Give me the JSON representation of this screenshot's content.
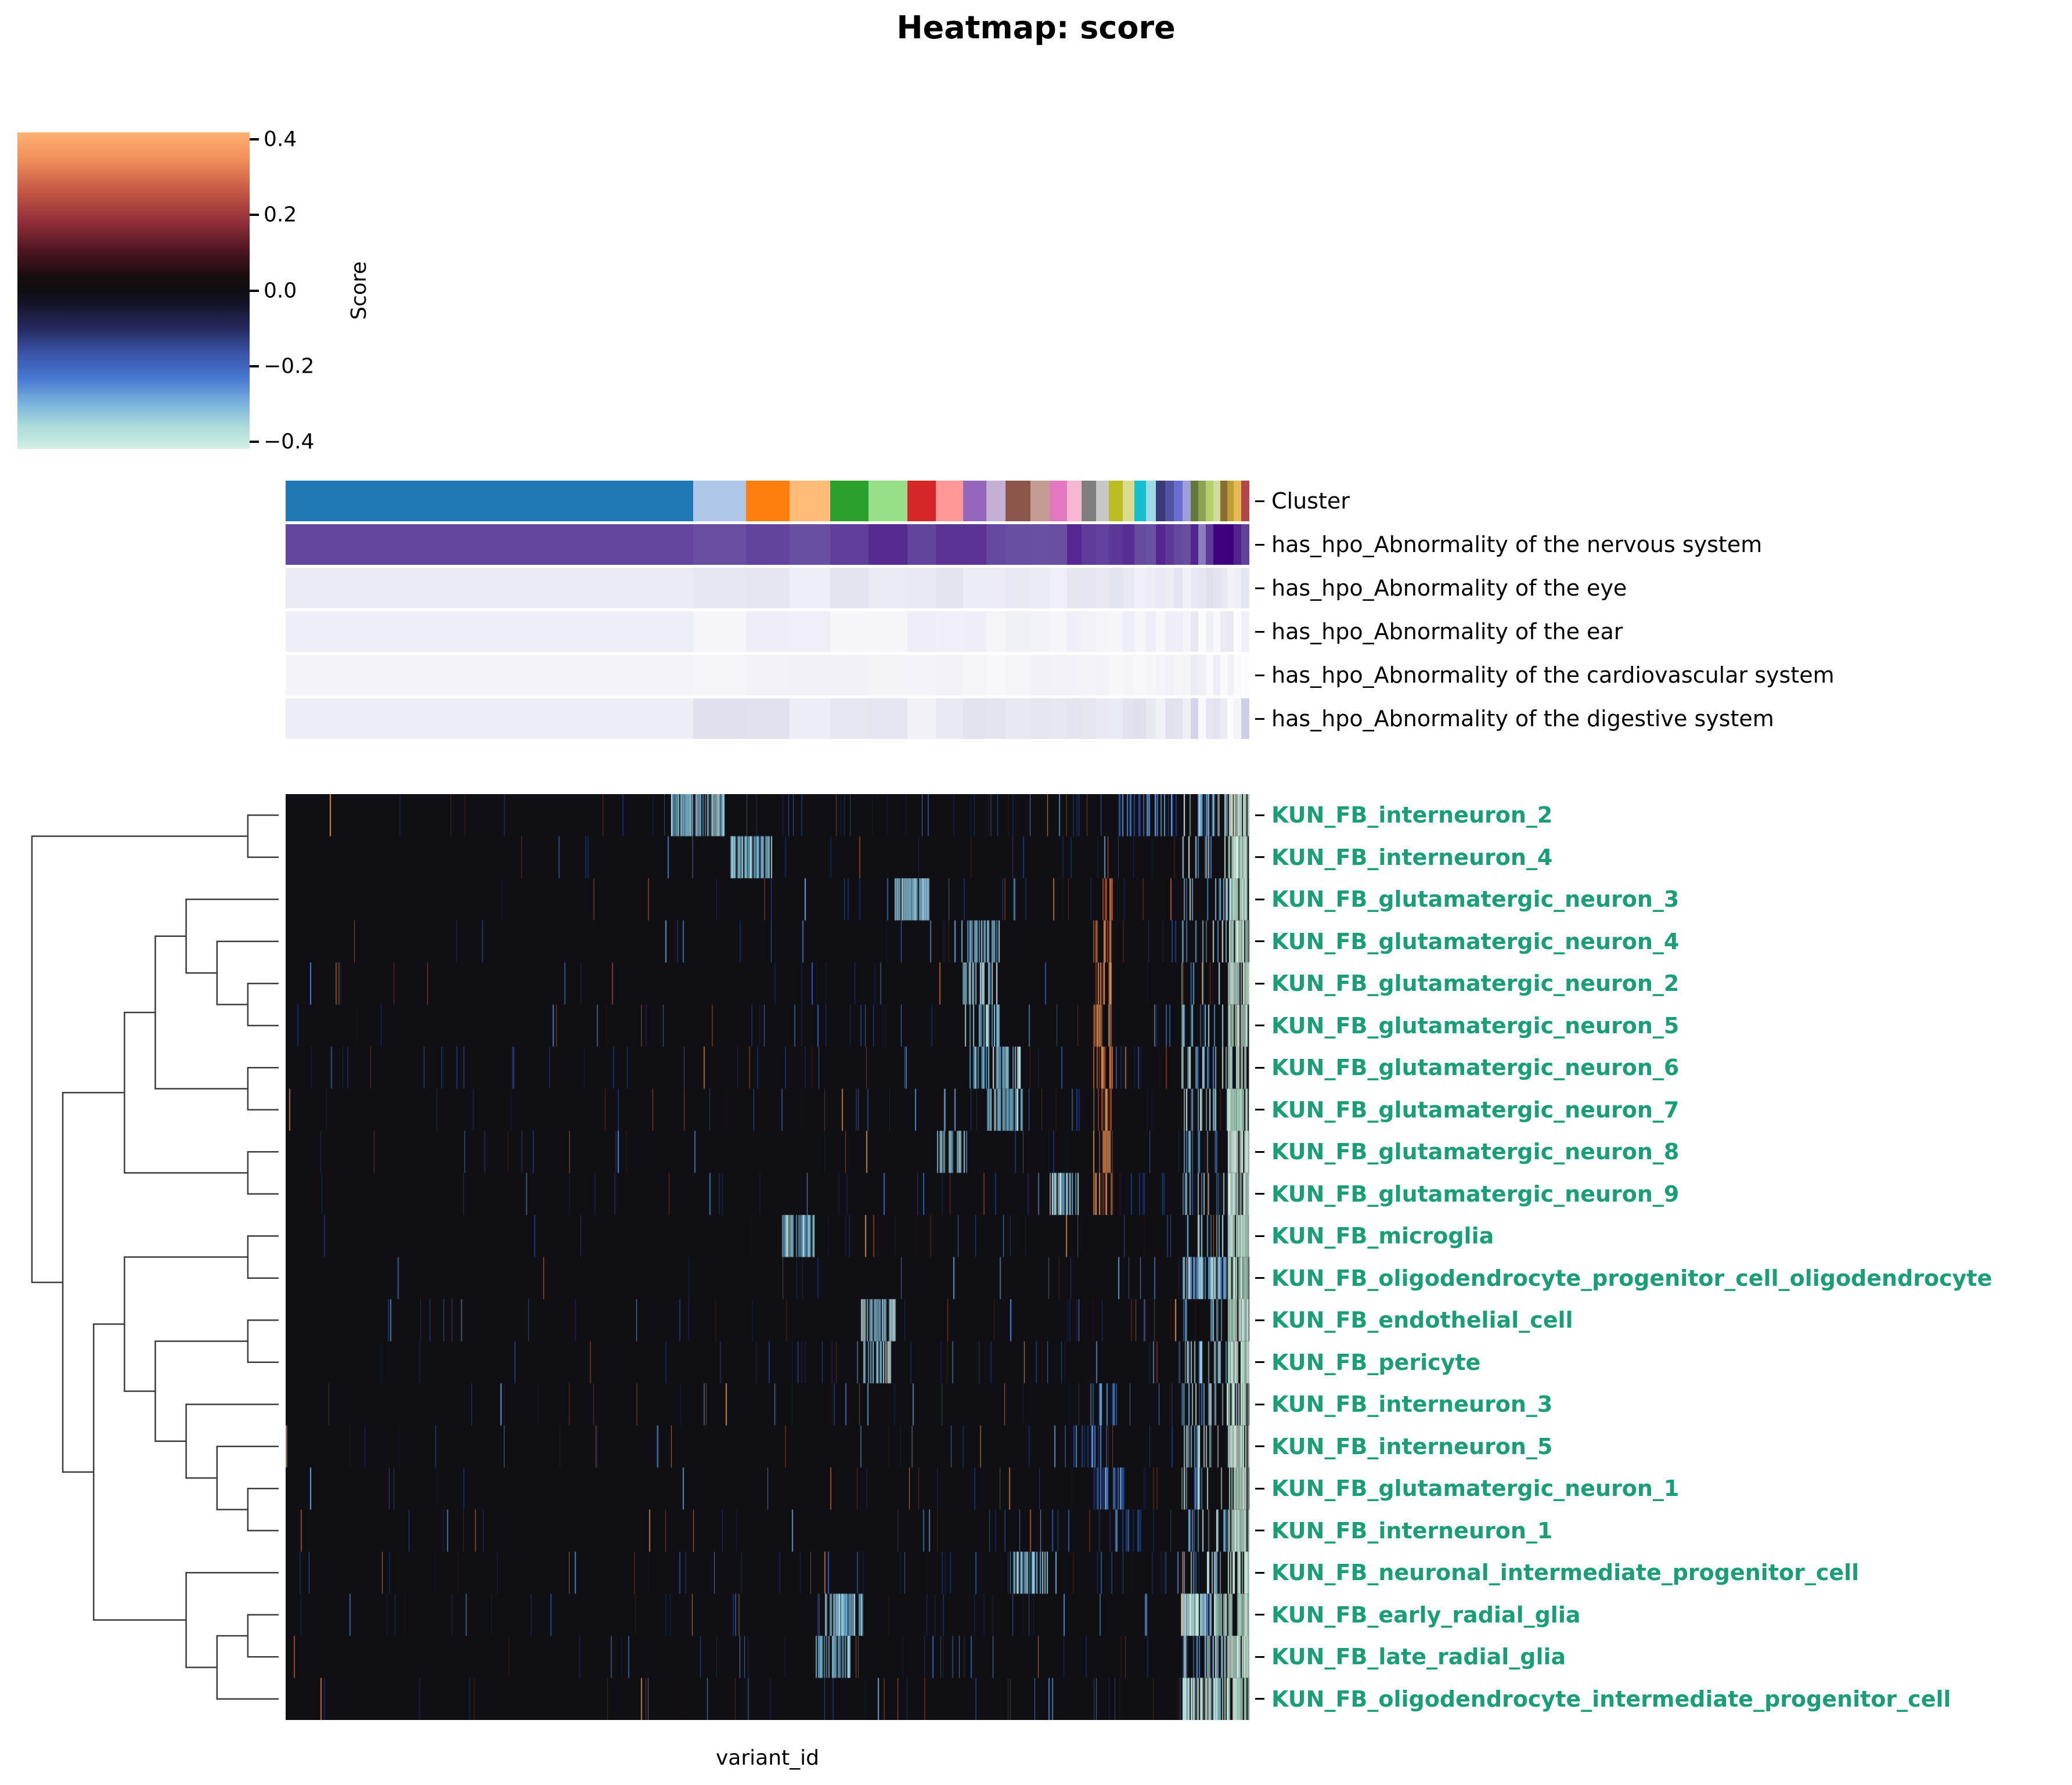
{
  "chart_data": {
    "type": "heatmap",
    "title": "Heatmap: score",
    "xlabel": "variant_id",
    "row_label_color": "#1b9e77",
    "background": "#101014",
    "colorbar": {
      "label": "Score",
      "ticks": [
        "0.4",
        "0.2",
        "0.0",
        "−0.2",
        "−0.4"
      ],
      "stops": [
        {
          "pos": "0%",
          "color": "#ffb073"
        },
        {
          "pos": "8%",
          "color": "#f2915c"
        },
        {
          "pos": "18%",
          "color": "#c85a46"
        },
        {
          "pos": "28%",
          "color": "#93303a"
        },
        {
          "pos": "38%",
          "color": "#4a1420"
        },
        {
          "pos": "46%",
          "color": "#170d0e"
        },
        {
          "pos": "50%",
          "color": "#0e0e12"
        },
        {
          "pos": "54%",
          "color": "#131327"
        },
        {
          "pos": "62%",
          "color": "#262a5e"
        },
        {
          "pos": "70%",
          "color": "#3a55a8"
        },
        {
          "pos": "78%",
          "color": "#4879d2"
        },
        {
          "pos": "86%",
          "color": "#7db4dc"
        },
        {
          "pos": "93%",
          "color": "#abdbd9"
        },
        {
          "pos": "100%",
          "color": "#d2efe3"
        }
      ]
    },
    "purple_scale": [
      [
        0,
        "#fcfbfd"
      ],
      [
        0.25,
        "#dadaeb"
      ],
      [
        0.5,
        "#9e9ac8"
      ],
      [
        0.75,
        "#6a51a3"
      ],
      [
        1,
        "#3f007d"
      ]
    ],
    "column_annotations": [
      {
        "label": "Cluster",
        "kind": "categorical",
        "segments": [
          [
            "#1f77b4",
            0.423
          ],
          [
            "#aec7e8",
            0.055
          ],
          [
            "#ff7f0e",
            0.045
          ],
          [
            "#ffbb78",
            0.042
          ],
          [
            "#2ca02c",
            0.04
          ],
          [
            "#98df8a",
            0.04
          ],
          [
            "#d62728",
            0.03
          ],
          [
            "#ff9896",
            0.028
          ],
          [
            "#9467bd",
            0.024
          ],
          [
            "#c5b0d5",
            0.02
          ],
          [
            "#8c564b",
            0.026
          ],
          [
            "#c49c94",
            0.02
          ],
          [
            "#e377c2",
            0.018
          ],
          [
            "#f7b6d2",
            0.015
          ],
          [
            "#7f7f7f",
            0.015
          ],
          [
            "#c7c7c7",
            0.013
          ],
          [
            "#bcbd22",
            0.015
          ],
          [
            "#dbdb8d",
            0.012
          ],
          [
            "#17becf",
            0.012
          ],
          [
            "#9edae5",
            0.01
          ],
          [
            "#393b79",
            0.01
          ],
          [
            "#5254a3",
            0.009
          ],
          [
            "#6b6ecf",
            0.009
          ],
          [
            "#9c9ede",
            0.008
          ],
          [
            "#637939",
            0.008
          ],
          [
            "#8ca252",
            0.008
          ],
          [
            "#b5cf6b",
            0.008
          ],
          [
            "#cedb9c",
            0.007
          ],
          [
            "#8c6d31",
            0.007
          ],
          [
            "#bd9e39",
            0.007
          ],
          [
            "#e7ba52",
            0.008
          ],
          [
            "#ad494a",
            0.008
          ]
        ]
      },
      {
        "label": "has_hpo_Abnormality of the nervous system",
        "kind": "continuous",
        "level": 0.82,
        "jitter": 0.07,
        "tail_jitter": 0.25
      },
      {
        "label": "has_hpo_Abnormality of the eye",
        "kind": "continuous",
        "level": 0.13,
        "jitter": 0.05,
        "tail_jitter": 0.12
      },
      {
        "label": "has_hpo_Abnormality of the ear",
        "kind": "continuous",
        "level": 0.07,
        "jitter": 0.035,
        "tail_jitter": 0.08
      },
      {
        "label": "has_hpo_Abnormality of the cardiovascular system",
        "kind": "continuous",
        "level": 0.05,
        "jitter": 0.03,
        "tail_jitter": 0.08
      },
      {
        "label": "has_hpo_Abnormality of the digestive system",
        "kind": "continuous",
        "level": 0.14,
        "jitter": 0.07,
        "tail_jitter": 0.2
      }
    ],
    "palettes": {
      "blues": [
        "#1b3a8c",
        "#2f5fc4",
        "#4d86d8",
        "#103070",
        "#6fa8dc"
      ],
      "oranges": [
        "#a8441f",
        "#c96a38",
        "#7e2f12",
        "#d98d55"
      ],
      "darks": [
        "#23184a",
        "#321b10",
        "#1d2a52"
      ],
      "cyan": [
        "#8ecae6",
        "#a8dadc",
        "#6db8dd",
        "#cfeef2",
        "#5aa7d1"
      ],
      "blue": [
        "#4d86d8",
        "#2f5fc4",
        "#6fa8dc",
        "#1b3a8c"
      ],
      "paleGreen": [
        "#cde9da",
        "#b9e2cf",
        "#e0f2e6",
        "#a7dcc6"
      ],
      "rightMix": [
        "#9fd3e8",
        "#cde9da",
        "#4d86d8",
        "#bfe8ea",
        "#6db8dd"
      ],
      "strip": [
        "#cfeadd",
        "#b9e2cf",
        "#dff3e8",
        "#a7dcc6"
      ],
      "orangeBand": [
        "#c96a38",
        "#e08a4e",
        "#a8441f",
        "#f0a868"
      ]
    },
    "rows": [
      {
        "label": "KUN_FB_interneuron_2",
        "density": 1.0,
        "right": 0.65,
        "orange_band": false,
        "blocks": [
          [
            0.4,
            0.455,
            "cyan",
            0.85
          ],
          [
            0.86,
            0.93,
            "blue",
            0.45
          ]
        ]
      },
      {
        "label": "KUN_FB_interneuron_4",
        "density": 0.9,
        "right": 0.5,
        "orange_band": false,
        "blocks": [
          [
            0.462,
            0.505,
            "cyan",
            0.85
          ]
        ]
      },
      {
        "label": "KUN_FB_glutamatergic_neuron_3",
        "density": 0.95,
        "right": 0.45,
        "orange_band": true,
        "blocks": [
          [
            0.632,
            0.668,
            "cyan",
            0.8
          ]
        ]
      },
      {
        "label": "KUN_FB_glutamatergic_neuron_4",
        "density": 0.9,
        "right": 0.45,
        "orange_band": true,
        "blocks": [
          [
            0.7,
            0.74,
            "cyan",
            0.55
          ]
        ]
      },
      {
        "label": "KUN_FB_glutamatergic_neuron_2",
        "density": 0.9,
        "right": 0.4,
        "orange_band": true,
        "blocks": [
          [
            0.7,
            0.738,
            "cyan",
            0.5
          ]
        ]
      },
      {
        "label": "KUN_FB_glutamatergic_neuron_5",
        "density": 0.9,
        "right": 0.4,
        "orange_band": true,
        "blocks": [
          [
            0.705,
            0.742,
            "cyan",
            0.55
          ]
        ]
      },
      {
        "label": "KUN_FB_glutamatergic_neuron_6",
        "density": 0.95,
        "right": 0.45,
        "orange_band": true,
        "blocks": [
          [
            0.7,
            0.762,
            "cyan",
            0.6
          ]
        ]
      },
      {
        "label": "KUN_FB_glutamatergic_neuron_7",
        "density": 0.95,
        "right": 0.5,
        "orange_band": true,
        "blocks": [
          [
            0.728,
            0.765,
            "cyan",
            0.7
          ]
        ]
      },
      {
        "label": "KUN_FB_glutamatergic_neuron_8",
        "density": 0.9,
        "right": 0.45,
        "orange_band": true,
        "blocks": [
          [
            0.676,
            0.705,
            "cyan",
            0.7
          ]
        ]
      },
      {
        "label": "KUN_FB_glutamatergic_neuron_9",
        "density": 0.9,
        "right": 0.5,
        "orange_band": true,
        "blocks": [
          [
            0.793,
            0.822,
            "cyan",
            0.75
          ]
        ]
      },
      {
        "label": "KUN_FB_microglia",
        "density": 0.85,
        "right": 0.4,
        "orange_band": false,
        "blocks": [
          [
            0.513,
            0.548,
            "cyan",
            0.85
          ]
        ]
      },
      {
        "label": "KUN_FB_oligodendrocyte_progenitor_cell_oligodendrocyte",
        "density": 0.85,
        "right": 0.8,
        "orange_band": false,
        "blocks": [
          [
            0.93,
            0.975,
            "cyan",
            0.6
          ]
        ]
      },
      {
        "label": "KUN_FB_endothelial_cell",
        "density": 0.8,
        "right": 0.45,
        "orange_band": false,
        "blocks": [
          [
            0.597,
            0.632,
            "cyan",
            0.8
          ]
        ]
      },
      {
        "label": "KUN_FB_pericyte",
        "density": 0.8,
        "right": 0.45,
        "orange_band": false,
        "blocks": [
          [
            0.597,
            0.628,
            "cyan",
            0.55
          ]
        ]
      },
      {
        "label": "KUN_FB_interneuron_3",
        "density": 0.85,
        "right": 0.5,
        "orange_band": false,
        "blocks": [
          [
            0.835,
            0.862,
            "blue",
            0.5
          ]
        ]
      },
      {
        "label": "KUN_FB_interneuron_5",
        "density": 0.85,
        "right": 0.5,
        "orange_band": false,
        "blocks": [
          [
            0.818,
            0.852,
            "blue",
            0.55
          ]
        ]
      },
      {
        "label": "KUN_FB_glutamatergic_neuron_1",
        "density": 0.85,
        "right": 0.5,
        "orange_band": false,
        "blocks": [
          [
            0.838,
            0.872,
            "blue",
            0.5
          ]
        ]
      },
      {
        "label": "KUN_FB_interneuron_1",
        "density": 0.85,
        "right": 0.5,
        "orange_band": false,
        "blocks": [
          [
            0.855,
            0.885,
            "blue",
            0.45
          ]
        ]
      },
      {
        "label": "KUN_FB_neuronal_intermediate_progenitor_cell",
        "density": 1.1,
        "right": 0.6,
        "orange_band": false,
        "blocks": [
          [
            0.755,
            0.79,
            "cyan",
            0.8
          ]
        ]
      },
      {
        "label": "KUN_FB_early_radial_glia",
        "density": 1.15,
        "right": 0.75,
        "orange_band": false,
        "blocks": [
          [
            0.56,
            0.6,
            "cyan",
            0.7
          ],
          [
            0.93,
            0.978,
            "paleGreen",
            0.7
          ]
        ]
      },
      {
        "label": "KUN_FB_late_radial_glia",
        "density": 1.1,
        "right": 0.6,
        "orange_band": false,
        "blocks": [
          [
            0.549,
            0.585,
            "cyan",
            0.8
          ]
        ]
      },
      {
        "label": "KUN_FB_oligodendrocyte_intermediate_progenitor_cell",
        "density": 1.15,
        "right": 0.7,
        "orange_band": false,
        "blocks": [
          [
            0.93,
            0.978,
            "paleGreen",
            0.55
          ]
        ]
      }
    ],
    "dendrogram": [
      [
        0,
        1
      ],
      [
        [
          [
            [
              2,
              [
                3,
                [
                  4,
                  5
                ]
              ]
            ],
            [
              6,
              7
            ]
          ],
          [
            8,
            9
          ]
        ],
        [
          [
            [
              10,
              11
            ],
            [
              [
                12,
                13
              ],
              [
                14,
                [
                  15,
                  [
                    16,
                    17
                  ]
                ]
              ]
            ]
          ],
          [
            18,
            [
              [
                19,
                20
              ],
              21
            ]
          ]
        ]
      ]
    ]
  }
}
